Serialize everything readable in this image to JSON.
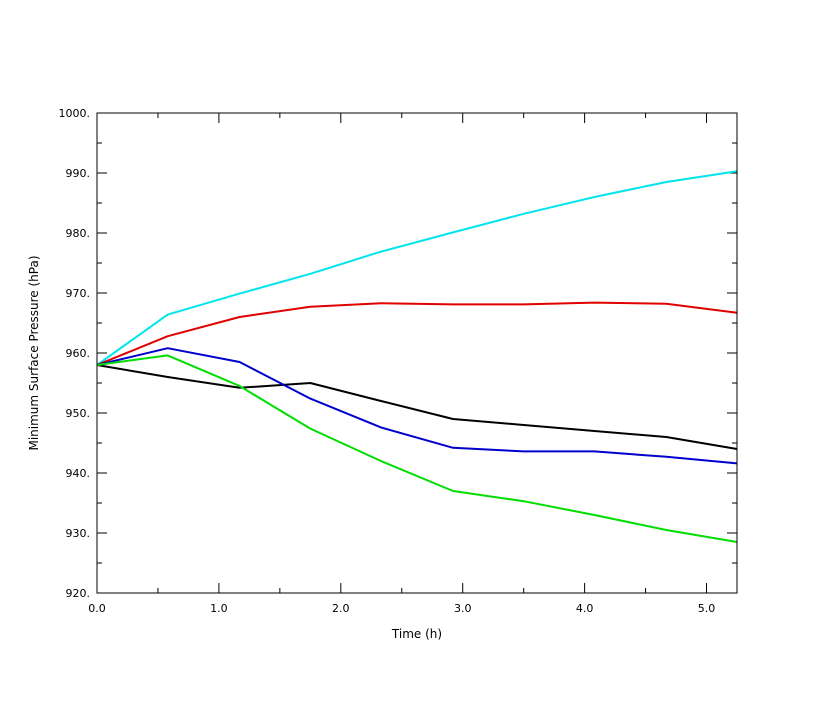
{
  "chart_data": {
    "type": "line",
    "title": "",
    "xlabel": "Time (h)",
    "ylabel": "Minimum Surface Pressure (hPa)",
    "xlim": [
      0,
      5.25
    ],
    "ylim": [
      920,
      1000
    ],
    "x_ticks": [
      0,
      1,
      2,
      3,
      4,
      5
    ],
    "x_tick_labels": [
      "0.0",
      "1.0",
      "2.0",
      "3.0",
      "4.0",
      "5.0"
    ],
    "y_ticks": [
      920,
      930,
      940,
      950,
      960,
      970,
      980,
      990,
      1000
    ],
    "y_tick_labels": [
      "920.",
      "930.",
      "940.",
      "950.",
      "960.",
      "970.",
      "980.",
      "990.",
      "1000."
    ],
    "grid": false,
    "legend": "none",
    "series": [
      {
        "color": "#00e5ee",
        "x": [
          0,
          0.58,
          1.17,
          1.75,
          2.33,
          2.92,
          3.5,
          4.08,
          4.67,
          5.25
        ],
        "values": [
          958.0,
          966.4,
          969.9,
          973.2,
          976.9,
          980.1,
          983.2,
          986.0,
          988.5,
          990.3
        ]
      },
      {
        "color": "#e00000",
        "x": [
          0,
          0.58,
          1.17,
          1.75,
          2.33,
          2.92,
          3.5,
          4.08,
          4.67,
          5.25
        ],
        "values": [
          958.0,
          962.8,
          966.0,
          967.7,
          968.3,
          968.1,
          968.1,
          968.4,
          968.2,
          966.7
        ]
      },
      {
        "color": "#000000",
        "x": [
          0,
          0.58,
          1.17,
          1.75,
          2.33,
          2.92,
          3.5,
          4.08,
          4.67,
          5.25
        ],
        "values": [
          958.0,
          956.0,
          954.2,
          955.0,
          952.0,
          949.0,
          948.0,
          947.0,
          946.0,
          944.0
        ]
      },
      {
        "color": "#0000cc",
        "x": [
          0,
          0.58,
          1.17,
          1.75,
          2.33,
          2.92,
          3.5,
          4.08,
          4.67,
          5.25
        ],
        "values": [
          958.0,
          960.8,
          958.5,
          952.4,
          947.6,
          944.2,
          943.6,
          943.6,
          942.7,
          941.6
        ]
      },
      {
        "color": "#00dd00",
        "x": [
          0,
          0.58,
          1.17,
          1.75,
          2.33,
          2.92,
          3.5,
          4.08,
          4.67,
          5.25
        ],
        "values": [
          958.0,
          959.6,
          954.5,
          947.4,
          942.0,
          937.0,
          935.3,
          933.0,
          930.5,
          928.5
        ]
      }
    ]
  }
}
